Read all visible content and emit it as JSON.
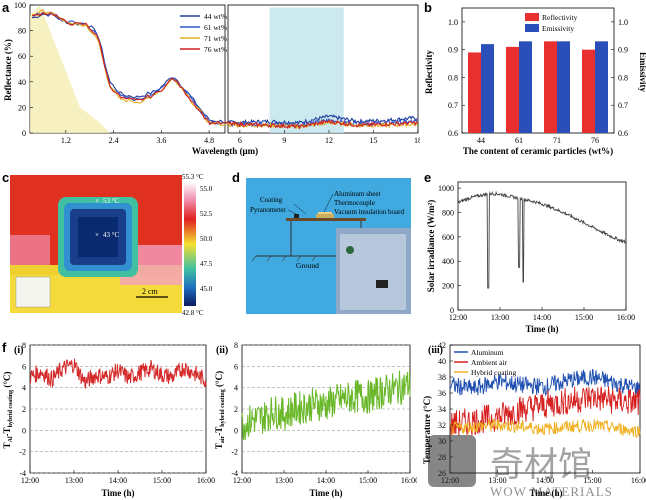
{
  "panels": {
    "a": {
      "label": "a",
      "xlabel": "Wavelength (μm)",
      "ylabel": "Reflectance (%)",
      "xticks_left": [
        "1.2",
        "2.4",
        "3.6",
        "4.8"
      ],
      "xticks_right": [
        "6",
        "9",
        "12",
        "15",
        "18"
      ],
      "yticks": [
        "0",
        "20",
        "40",
        "60",
        "80",
        "100"
      ],
      "legend": [
        "44 wt%",
        "61 wt%",
        "71 wt%",
        "76 wt%"
      ],
      "colors": [
        "#1f3f9e",
        "#3355cc",
        "#e0b020",
        "#d02020"
      ]
    },
    "b": {
      "label": "b",
      "xlabel": "The content of ceramic particles (wt%)",
      "ylabel_left": "Reflectivity",
      "ylabel_right": "Emissivity",
      "legend": [
        "Reflectivity",
        "Emissivity"
      ],
      "yticks": [
        "0.6",
        "0.7",
        "0.8",
        "0.9",
        "1.0"
      ],
      "yticks_right": [
        "0.6",
        "0.7",
        "0.8",
        "0.9",
        "1.0"
      ]
    },
    "c": {
      "label": "c",
      "temp_max": "55.3 °C",
      "temp_min": "42.8 °C",
      "scale_ticks": [
        "55.0",
        "52.5",
        "50.0",
        "47.5",
        "45.0"
      ],
      "spot_outer": "53 °C",
      "spot_inner": "43 °C",
      "scalebar": "2 cm"
    },
    "d": {
      "label": "d",
      "labels": [
        "Coating",
        "Pyranometer",
        "Aluminum sheet",
        "Thermocouple",
        "Vacuum insulation board",
        "Ground"
      ]
    },
    "e": {
      "label": "e",
      "xlabel": "Time (h)",
      "ylabel": "Solar irradiance (W/m²)",
      "xticks": [
        "12:00",
        "13:00",
        "14:00",
        "15:00",
        "16:00"
      ],
      "yticks": [
        "0",
        "200",
        "400",
        "600",
        "800",
        "1000"
      ]
    },
    "f": {
      "label": "f",
      "i": {
        "tag": "(i)",
        "ylabel": "T",
        "ylabel_sub": "Al",
        "ylabel_tail": "-T",
        "ylabel_sub2": "hybrid coating",
        "ylabel_unit": " (°C)",
        "xlabel": "Time (h)",
        "xticks": [
          "12:00",
          "13:00",
          "14:00",
          "15:00",
          "16:00"
        ],
        "yticks": [
          "-4",
          "-2",
          "0",
          "2",
          "4",
          "6",
          "8"
        ]
      },
      "ii": {
        "tag": "(ii)",
        "ylabel": "T",
        "ylabel_sub": "air",
        "ylabel_tail": "-T",
        "ylabel_sub2": "hybrid coating",
        "ylabel_unit": " (°C)",
        "xlabel": "Time (h)",
        "xticks": [
          "12:00",
          "13:00",
          "14:00",
          "15:00",
          "16:00"
        ],
        "yticks": [
          "-4",
          "-2",
          "0",
          "2",
          "4",
          "6",
          "8"
        ]
      },
      "iii": {
        "tag": "(iii)",
        "ylabel": "Temperature (°C)",
        "xlabel": "Time (h)",
        "xticks": [
          "12:00",
          "13:00",
          "14:00",
          "15:00",
          "16:00"
        ],
        "yticks": [
          "26",
          "28",
          "30",
          "32",
          "34",
          "36",
          "38",
          "40",
          "42"
        ],
        "legend": [
          "Aluminum",
          "Ambient air",
          "Hybrid coating"
        ],
        "colors": [
          "#1f4fb0",
          "#d62020",
          "#f0b020"
        ]
      }
    }
  },
  "chart_data": [
    {
      "type": "line",
      "panel": "a",
      "x_unit": "μm",
      "xlim": [
        0.3,
        18
      ],
      "ylim": [
        0,
        100
      ],
      "series": [
        {
          "name": "44 wt%",
          "x": [
            0.4,
            0.6,
            0.9,
            1.1,
            1.4,
            1.7,
            2.0,
            2.3,
            2.6,
            3.0,
            3.5,
            3.9,
            4.3,
            4.8,
            5.5,
            8,
            10,
            12,
            14,
            16,
            18
          ],
          "y": [
            90,
            93,
            92,
            88,
            85,
            86,
            78,
            40,
            30,
            28,
            33,
            45,
            30,
            10,
            8,
            9,
            8,
            13,
            9,
            10,
            12
          ]
        },
        {
          "name": "61 wt%",
          "x": [
            0.4,
            0.6,
            0.9,
            1.1,
            1.4,
            1.7,
            2.0,
            2.3,
            2.6,
            3.0,
            3.5,
            3.9,
            4.3,
            4.8,
            5.5,
            8,
            10,
            12,
            14,
            16,
            18
          ],
          "y": [
            91,
            94,
            93,
            88,
            86,
            85,
            76,
            38,
            28,
            26,
            32,
            44,
            29,
            9,
            7,
            7,
            6,
            10,
            7,
            8,
            9
          ]
        },
        {
          "name": "71 wt%",
          "x": [
            0.4,
            0.6,
            0.9,
            1.1,
            1.4,
            1.7,
            2.0,
            2.3,
            2.6,
            3.0,
            3.5,
            3.9,
            4.3,
            4.8,
            5.5,
            8,
            10,
            12,
            14,
            16,
            18
          ],
          "y": [
            92,
            95,
            94,
            89,
            86,
            84,
            75,
            36,
            26,
            24,
            30,
            42,
            27,
            8,
            6,
            6,
            5,
            8,
            6,
            6,
            7
          ]
        },
        {
          "name": "76 wt%",
          "x": [
            0.4,
            0.6,
            0.9,
            1.1,
            1.4,
            1.7,
            2.0,
            2.3,
            2.6,
            3.0,
            3.5,
            3.9,
            4.3,
            4.8,
            5.5,
            8,
            10,
            12,
            14,
            16,
            18
          ],
          "y": [
            91,
            94,
            93,
            88,
            85,
            85,
            76,
            37,
            27,
            25,
            31,
            43,
            28,
            8,
            7,
            6,
            5,
            9,
            6,
            7,
            8
          ]
        }
      ]
    },
    {
      "type": "bar",
      "panel": "b",
      "categories": [
        "44",
        "61",
        "71",
        "76"
      ],
      "ylim": [
        0.6,
        1.05
      ],
      "series": [
        {
          "name": "Reflectivity",
          "values": [
            0.89,
            0.91,
            0.93,
            0.9
          ]
        },
        {
          "name": "Emissivity",
          "values": [
            0.92,
            0.93,
            0.93,
            0.93
          ]
        }
      ]
    },
    {
      "type": "line",
      "panel": "e",
      "xlim": [
        12,
        16
      ],
      "ylim": [
        0,
        1050
      ],
      "series": [
        {
          "x": [
            12.0,
            12.2,
            12.4,
            12.6,
            12.8,
            13.0,
            13.2,
            13.4,
            13.6,
            13.8,
            14.0,
            14.2,
            14.4,
            14.6,
            14.8,
            15.0,
            15.2,
            15.4,
            15.6,
            15.8,
            16.0
          ],
          "y": [
            880,
            910,
            930,
            945,
            955,
            950,
            935,
            920,
            905,
            890,
            870,
            845,
            815,
            785,
            750,
            715,
            680,
            645,
            610,
            580,
            555
          ]
        }
      ]
    },
    {
      "type": "line",
      "panel": "f(i)",
      "xlim": [
        12,
        16
      ],
      "ylim": [
        -4,
        8
      ],
      "series": [
        {
          "x": [
            12.0,
            12.25,
            12.5,
            12.75,
            13.0,
            13.25,
            13.5,
            13.75,
            14.0,
            14.25,
            14.5,
            14.75,
            15.0,
            15.25,
            15.5,
            15.75,
            16.0
          ],
          "y": [
            5.0,
            5.5,
            4.8,
            5.8,
            6.2,
            4.5,
            5.2,
            5.0,
            5.6,
            4.9,
            5.4,
            5.8,
            5.2,
            5.0,
            5.9,
            5.3,
            4.7
          ]
        }
      ]
    },
    {
      "type": "line",
      "panel": "f(ii)",
      "xlim": [
        12,
        16
      ],
      "ylim": [
        -4,
        8
      ],
      "series": [
        {
          "x": [
            12.0,
            12.25,
            12.5,
            12.75,
            13.0,
            13.25,
            13.5,
            13.75,
            14.0,
            14.25,
            14.5,
            14.75,
            15.0,
            15.25,
            15.5,
            15.75,
            16.0
          ],
          "y": [
            0.5,
            1.0,
            1.2,
            1.8,
            1.5,
            2.0,
            2.2,
            2.5,
            2.4,
            2.8,
            3.0,
            3.2,
            3.1,
            3.5,
            3.8,
            4.0,
            4.3
          ]
        }
      ]
    },
    {
      "type": "line",
      "panel": "f(iii)",
      "xlim": [
        12,
        16
      ],
      "ylim": [
        26,
        42
      ],
      "series": [
        {
          "name": "Aluminum",
          "x": [
            12.0,
            12.5,
            13.0,
            13.5,
            14.0,
            14.5,
            15.0,
            15.5,
            16.0
          ],
          "y": [
            37,
            36.5,
            37.5,
            37,
            36.8,
            37.6,
            38,
            37.2,
            36.5
          ]
        },
        {
          "name": "Ambient air",
          "x": [
            12.0,
            12.5,
            13.0,
            13.5,
            14.0,
            14.5,
            15.0,
            15.5,
            16.0
          ],
          "y": [
            32,
            32.5,
            33,
            34,
            34.5,
            35,
            35.5,
            35,
            34.8
          ]
        },
        {
          "name": "Hybrid coating",
          "x": [
            12.0,
            12.5,
            13.0,
            13.5,
            14.0,
            14.5,
            15.0,
            15.5,
            16.0
          ],
          "y": [
            31.5,
            31.8,
            32,
            31.8,
            31.5,
            31.8,
            32,
            31.6,
            31.2
          ]
        }
      ]
    }
  ],
  "watermark": {
    "text": "WOW MATERIALS"
  }
}
